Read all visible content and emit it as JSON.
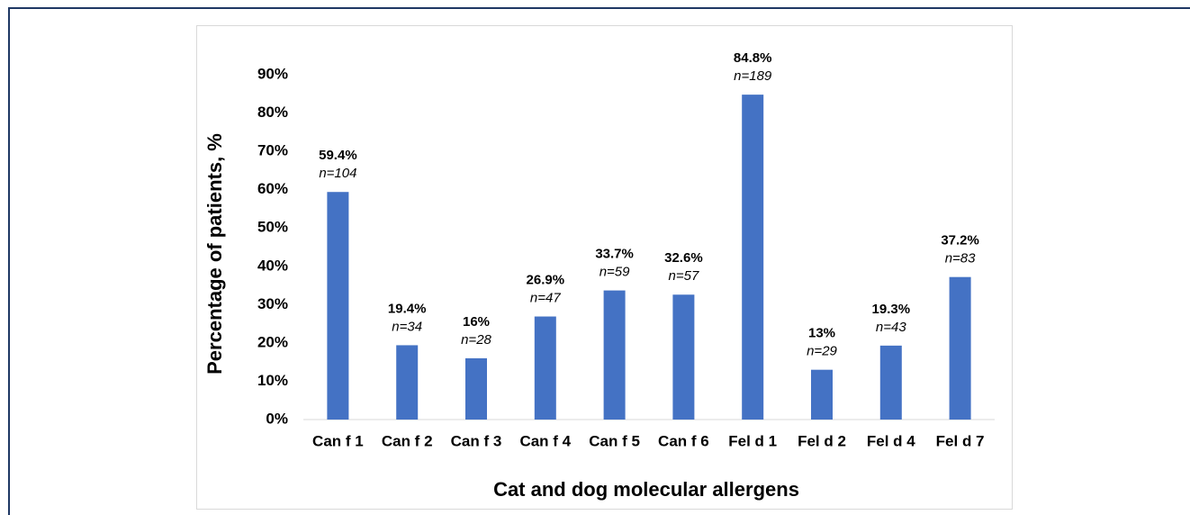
{
  "chart_data": {
    "type": "bar",
    "x_label": "Cat and dog molecular allergens",
    "y_label": "Percentage of patients, %",
    "categories": [
      "Can f 1",
      "Can f 2",
      "Can f 3",
      "Can f 4",
      "Can f 5",
      "Can f 6",
      "Fel d 1",
      "Fel d 2",
      "Fel d 4",
      "Fel d 7"
    ],
    "values": [
      59.4,
      19.4,
      16,
      26.9,
      33.7,
      32.6,
      84.8,
      13,
      19.3,
      37.2
    ],
    "value_labels": [
      "59.4%",
      "19.4%",
      "16%",
      "26.9%",
      "33.7%",
      "32.6%",
      "84.8%",
      "13%",
      "19.3%",
      "37.2%"
    ],
    "annotations": [
      "n=104",
      "n=34",
      "n=28",
      "n=47",
      "n=59",
      "n=57",
      "n=189",
      "n=29",
      "n=43",
      "n=83"
    ],
    "color": "#4472c4",
    "ylim": [
      0,
      90
    ],
    "yticks": [
      {
        "value": 0,
        "label": "0%"
      },
      {
        "value": 10,
        "label": "10%"
      },
      {
        "value": 20,
        "label": "20%"
      },
      {
        "value": 30,
        "label": "30%"
      },
      {
        "value": 40,
        "label": "40%"
      },
      {
        "value": 50,
        "label": "50%"
      },
      {
        "value": 60,
        "label": "60%"
      },
      {
        "value": 70,
        "label": "70%"
      },
      {
        "value": 80,
        "label": "80%"
      },
      {
        "value": 90,
        "label": "90%"
      }
    ],
    "grid": false
  }
}
